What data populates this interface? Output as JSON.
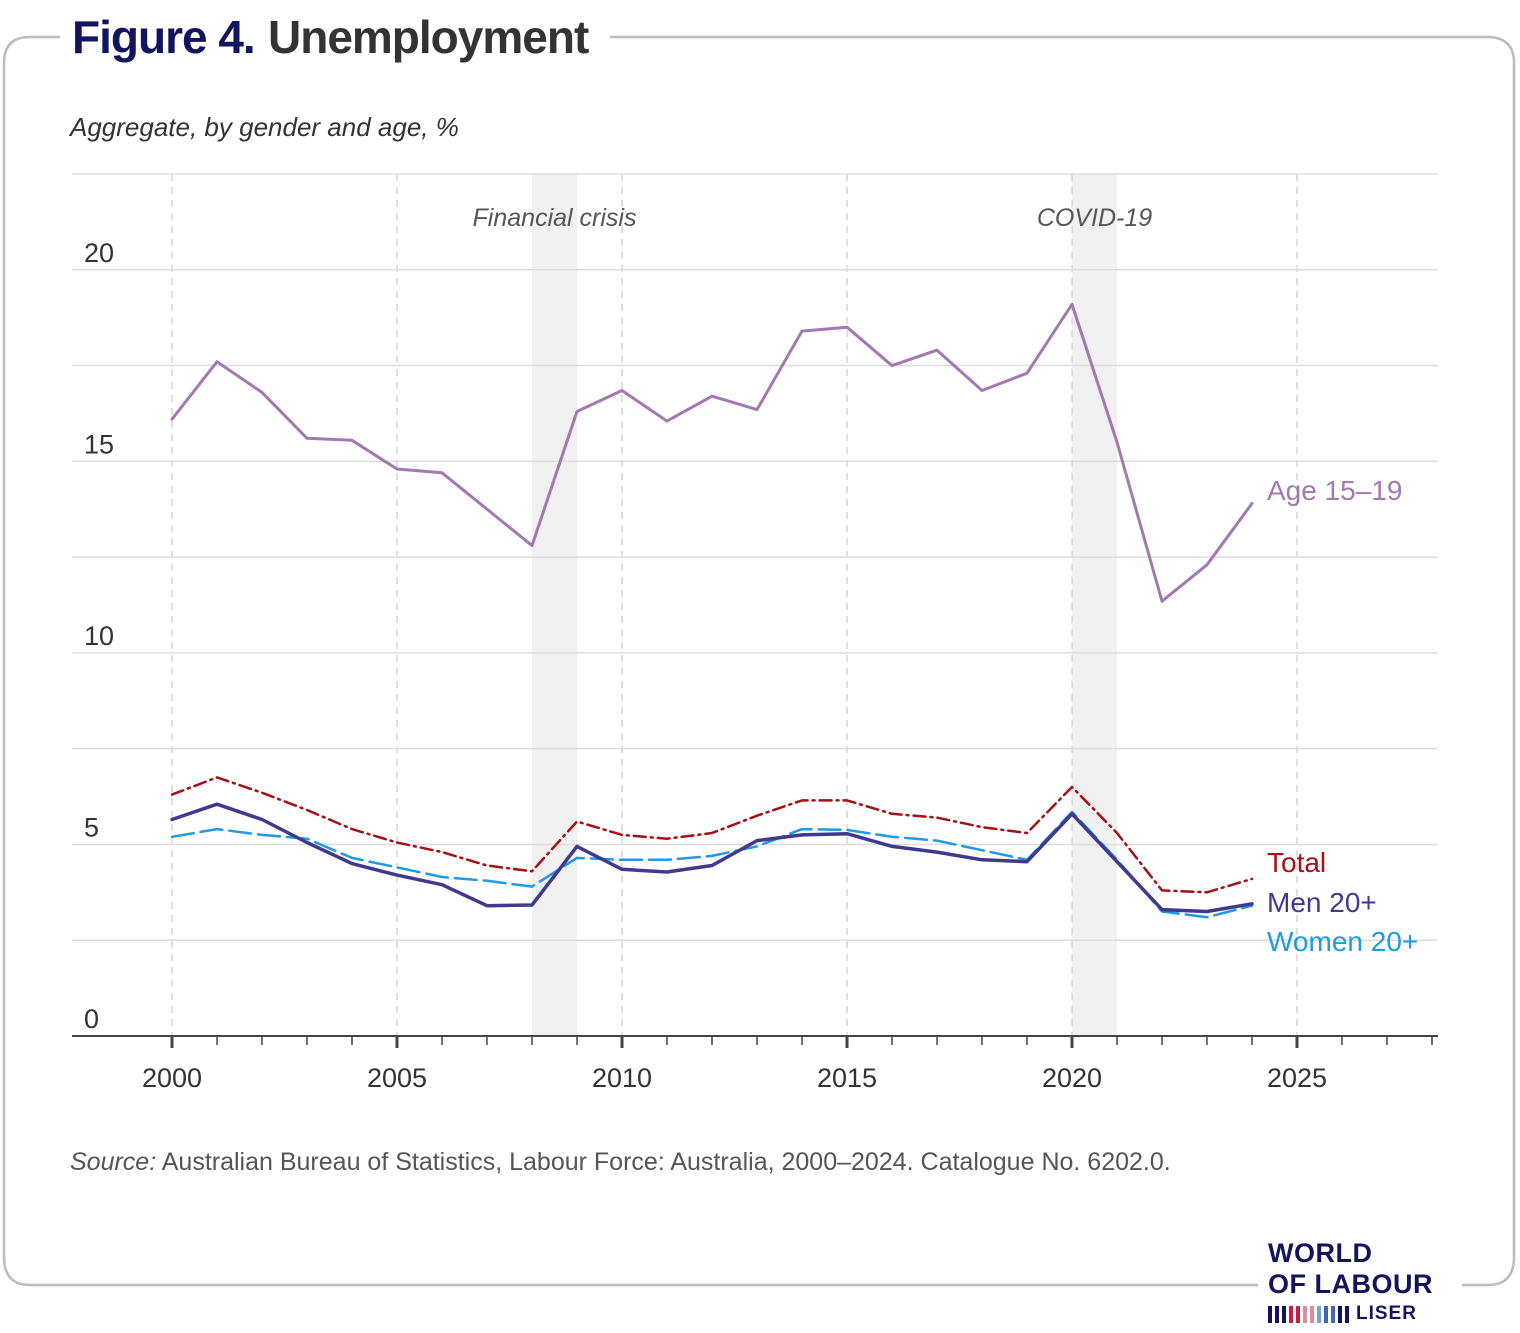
{
  "figure": {
    "number": "Figure 4.",
    "title": "Unemployment",
    "subtitle": "Aggregate, by gender and age, %",
    "source_label": "Source:",
    "source_text": " Australian Bureau of Statistics, Labour Force: Australia, 2000–2024. Catalogue No. 6202.0."
  },
  "logo": {
    "line1": "WORLD",
    "line2": "OF LABOUR",
    "line3": "LISER"
  },
  "colors": {
    "age": "#a478b0",
    "total": "#a50f15",
    "men": "#3f3a8f",
    "women": "#1e9ae6",
    "shade": "#f1f1f1",
    "brand": "#12145f"
  },
  "chart_data": {
    "type": "line",
    "title": "Unemployment",
    "subtitle": "Aggregate, by gender and age, %",
    "xlabel": "",
    "ylabel": "",
    "xlim": [
      1999.5,
      2028.5
    ],
    "ylim": [
      0,
      22.5
    ],
    "x_ticks": [
      2000,
      2005,
      2010,
      2015,
      2020,
      2025
    ],
    "y_ticks": [
      0,
      5,
      10,
      15,
      20
    ],
    "grid": true,
    "legend": "direct labels at right",
    "shaded_periods": [
      {
        "label": "Financial crisis",
        "start": 2008,
        "end": 2009
      },
      {
        "label": "COVID-19",
        "start": 2020,
        "end": 2021
      }
    ],
    "x": [
      2000,
      2001,
      2002,
      2003,
      2004,
      2005,
      2006,
      2007,
      2008,
      2009,
      2010,
      2011,
      2012,
      2013,
      2014,
      2015,
      2016,
      2017,
      2018,
      2019,
      2020,
      2021,
      2022,
      2023,
      2024
    ],
    "series": [
      {
        "name": "Age 15–19",
        "key": "age",
        "values": [
          16.1,
          17.6,
          16.8,
          15.6,
          15.55,
          14.8,
          14.7,
          13.75,
          12.8,
          16.3,
          16.85,
          16.05,
          16.7,
          16.35,
          18.4,
          18.5,
          17.5,
          17.9,
          16.85,
          17.3,
          19.1,
          15.5,
          11.35,
          12.3,
          13.9
        ],
        "style": "solid"
      },
      {
        "name": "Total",
        "key": "total",
        "values": [
          6.3,
          6.75,
          6.35,
          5.9,
          5.4,
          5.05,
          4.8,
          4.45,
          4.3,
          5.6,
          5.25,
          5.15,
          5.3,
          5.75,
          6.15,
          6.15,
          5.8,
          5.7,
          5.45,
          5.3,
          6.5,
          5.3,
          3.8,
          3.75,
          4.1
        ],
        "style": "dash-dot"
      },
      {
        "name": "Men 20+",
        "key": "men",
        "values": [
          5.65,
          6.05,
          5.65,
          5.05,
          4.5,
          4.2,
          3.95,
          3.4,
          3.42,
          4.95,
          4.35,
          4.28,
          4.45,
          5.1,
          5.25,
          5.28,
          4.95,
          4.8,
          4.6,
          4.55,
          5.8,
          4.55,
          3.3,
          3.25,
          3.45
        ],
        "style": "solid-bold"
      },
      {
        "name": "Women 20+",
        "key": "women",
        "values": [
          5.2,
          5.4,
          5.25,
          5.15,
          4.65,
          4.4,
          4.15,
          4.05,
          3.9,
          4.65,
          4.6,
          4.6,
          4.7,
          4.95,
          5.4,
          5.38,
          5.2,
          5.1,
          4.85,
          4.6,
          5.85,
          4.6,
          3.25,
          3.1,
          3.4
        ],
        "style": "long-dash"
      }
    ]
  }
}
